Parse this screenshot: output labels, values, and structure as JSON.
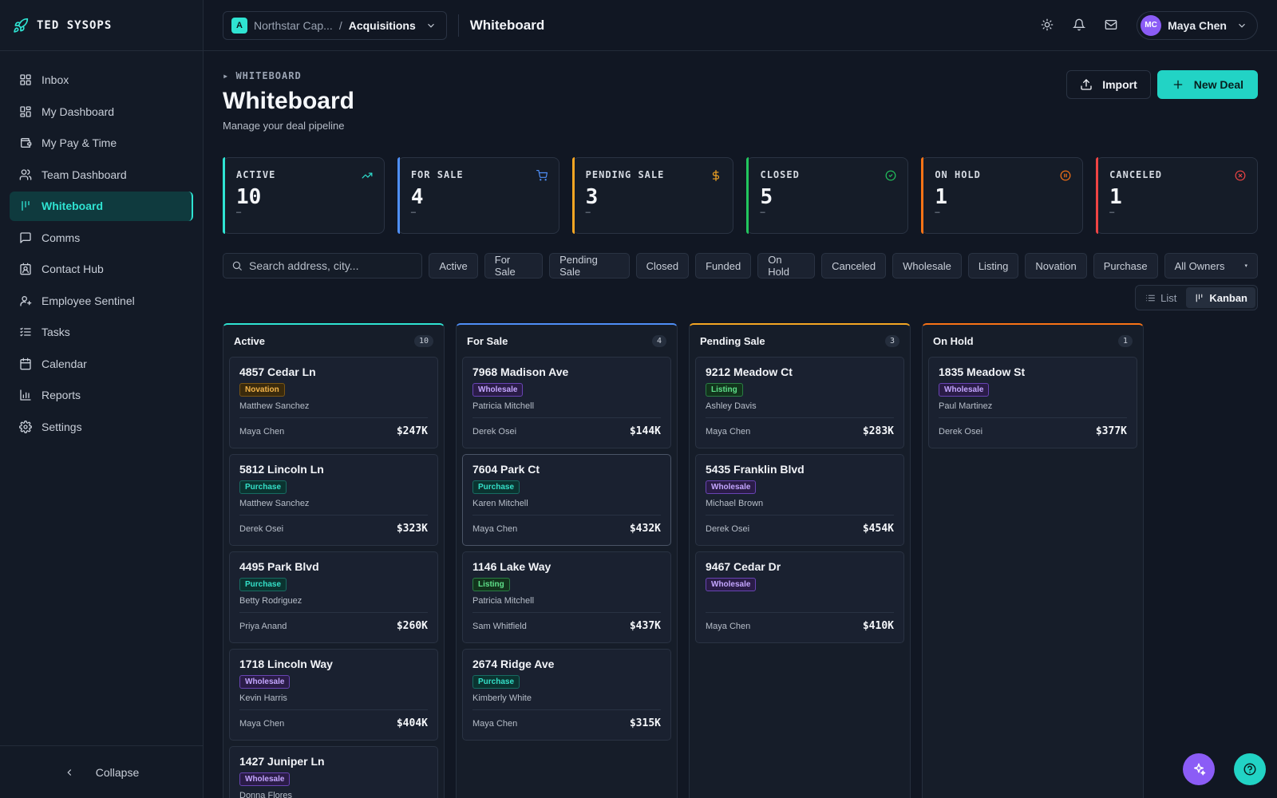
{
  "brand": {
    "name": "TED SYSOPS"
  },
  "sidebar": {
    "items": [
      {
        "label": "Inbox",
        "icon": "inbox-icon"
      },
      {
        "label": "My Dashboard",
        "icon": "dashboard-icon"
      },
      {
        "label": "My Pay & Time",
        "icon": "wallet-icon"
      },
      {
        "label": "Team Dashboard",
        "icon": "users-icon"
      },
      {
        "label": "Whiteboard",
        "icon": "kanban-icon",
        "active": true
      },
      {
        "label": "Comms",
        "icon": "message-icon"
      },
      {
        "label": "Contact Hub",
        "icon": "contact-icon"
      },
      {
        "label": "Employee Sentinel",
        "icon": "user-shield-icon"
      },
      {
        "label": "Tasks",
        "icon": "tasks-icon"
      },
      {
        "label": "Calendar",
        "icon": "calendar-icon"
      },
      {
        "label": "Reports",
        "icon": "chart-icon"
      },
      {
        "label": "Settings",
        "icon": "gear-icon"
      }
    ],
    "collapse_label": "Collapse"
  },
  "topbar": {
    "org_badge": "A",
    "org_name": "Northstar Cap...",
    "separator": "/",
    "team": "Acquisitions",
    "title": "Whiteboard",
    "user_initials": "MC",
    "user_name": "Maya Chen"
  },
  "page": {
    "breadcrumb": "▸ WHITEBOARD",
    "title": "Whiteboard",
    "subtitle": "Manage your deal pipeline",
    "import_label": "Import",
    "new_deal_label": "New Deal"
  },
  "stats": [
    {
      "label": "ACTIVE",
      "value": "10",
      "sub": "–",
      "color": "#2fe3d2",
      "icon": "trending-up-icon"
    },
    {
      "label": "FOR SALE",
      "value": "4",
      "sub": "–",
      "color": "#4f8ff7",
      "icon": "cart-icon"
    },
    {
      "label": "PENDING SALE",
      "value": "3",
      "sub": "–",
      "color": "#f5a623",
      "icon": "dollar-icon"
    },
    {
      "label": "CLOSED",
      "value": "5",
      "sub": "–",
      "color": "#22c55e",
      "icon": "check-circle-icon"
    },
    {
      "label": "ON HOLD",
      "value": "1",
      "sub": "–",
      "color": "#f97316",
      "icon": "pause-circle-icon"
    },
    {
      "label": "CANCELED",
      "value": "1",
      "sub": "–",
      "color": "#ef4444",
      "icon": "x-circle-icon"
    }
  ],
  "filters": {
    "search_placeholder": "Search address, city...",
    "chips": [
      "Active",
      "For Sale",
      "Pending Sale",
      "Closed",
      "Funded",
      "On Hold",
      "Canceled",
      "Wholesale",
      "Listing",
      "Novation",
      "Purchase"
    ],
    "owners": "All Owners"
  },
  "view": {
    "list": "List",
    "kanban": "Kanban"
  },
  "board": {
    "columns": [
      {
        "title": "Active",
        "count": "10",
        "color": "#2fe3d2",
        "cards": [
          {
            "address": "4857 Cedar Ln",
            "tag": "Novation",
            "seller": "Matthew Sanchez",
            "owner": "Maya Chen",
            "price": "$247K"
          },
          {
            "address": "5812 Lincoln Ln",
            "tag": "Purchase",
            "seller": "Matthew Sanchez",
            "owner": "Derek Osei",
            "price": "$323K"
          },
          {
            "address": "4495 Park Blvd",
            "tag": "Purchase",
            "seller": "Betty Rodriguez",
            "owner": "Priya Anand",
            "price": "$260K"
          },
          {
            "address": "1718 Lincoln Way",
            "tag": "Wholesale",
            "seller": "Kevin Harris",
            "owner": "Maya Chen",
            "price": "$404K"
          },
          {
            "address": "1427 Juniper Ln",
            "tag": "Wholesale",
            "seller": "Donna Flores",
            "owner": "",
            "price": ""
          }
        ]
      },
      {
        "title": "For Sale",
        "count": "4",
        "color": "#4f8ff7",
        "cards": [
          {
            "address": "7968 Madison Ave",
            "tag": "Wholesale",
            "seller": "Patricia Mitchell",
            "owner": "Derek Osei",
            "price": "$144K"
          },
          {
            "address": "7604 Park Ct",
            "tag": "Purchase",
            "seller": "Karen Mitchell",
            "owner": "Maya Chen",
            "price": "$432K",
            "highlight": true
          },
          {
            "address": "1146 Lake Way",
            "tag": "Listing",
            "seller": "Patricia Mitchell",
            "owner": "Sam Whitfield",
            "price": "$437K"
          },
          {
            "address": "2674 Ridge Ave",
            "tag": "Purchase",
            "seller": "Kimberly White",
            "owner": "Maya Chen",
            "price": "$315K"
          }
        ]
      },
      {
        "title": "Pending Sale",
        "count": "3",
        "color": "#f5a623",
        "cards": [
          {
            "address": "9212 Meadow Ct",
            "tag": "Listing",
            "seller": "Ashley Davis",
            "owner": "Maya Chen",
            "price": "$283K"
          },
          {
            "address": "5435 Franklin Blvd",
            "tag": "Wholesale",
            "seller": "Michael Brown",
            "owner": "Derek Osei",
            "price": "$454K"
          },
          {
            "address": "9467 Cedar Dr",
            "tag": "Wholesale",
            "seller": "",
            "owner": "Maya Chen",
            "price": "$410K"
          }
        ]
      },
      {
        "title": "On Hold",
        "count": "1",
        "color": "#f97316",
        "cards": [
          {
            "address": "1835 Meadow St",
            "tag": "Wholesale",
            "seller": "Paul Martinez",
            "owner": "Derek Osei",
            "price": "$377K"
          }
        ]
      }
    ]
  }
}
